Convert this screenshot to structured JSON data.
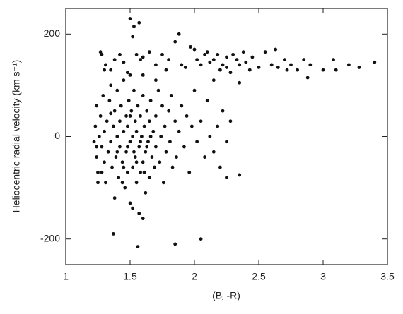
{
  "chart_data": {
    "type": "scatter",
    "xlabel": "(Bⱼ -R)",
    "ylabel": "Heliocentric radial velocity (km s⁻¹)",
    "xlim": [
      1,
      3.5
    ],
    "ylim": [
      -250,
      250
    ],
    "xticks": [
      1,
      1.5,
      2,
      2.5,
      3,
      3.5
    ],
    "yticks": [
      -200,
      0,
      200
    ],
    "color": "#111111",
    "x": [
      1.27,
      1.28,
      1.31,
      1.35,
      1.38,
      1.42,
      1.45,
      1.48,
      1.5,
      1.53,
      1.57,
      1.52,
      1.55,
      1.58,
      1.6,
      1.65,
      1.7,
      1.75,
      1.78,
      1.8,
      1.85,
      1.9,
      1.93,
      1.97,
      2.0,
      2.02,
      2.05,
      2.08,
      2.1,
      2.12,
      2.15,
      2.18,
      2.2,
      2.22,
      2.25,
      2.28,
      2.3,
      2.33,
      2.35,
      2.38,
      2.4,
      2.43,
      2.45,
      2.5,
      2.55,
      2.6,
      2.63,
      2.65,
      2.7,
      2.72,
      2.75,
      2.8,
      2.85,
      2.88,
      2.9,
      3.0,
      3.08,
      3.1,
      3.2,
      3.28,
      3.4,
      1.88,
      2.15,
      2.25,
      2.35,
      1.22,
      1.23,
      1.24,
      1.24,
      1.25,
      1.26,
      1.27,
      1.28,
      1.29,
      1.3,
      1.3,
      1.31,
      1.32,
      1.33,
      1.34,
      1.35,
      1.35,
      1.36,
      1.37,
      1.38,
      1.38,
      1.39,
      1.4,
      1.4,
      1.41,
      1.42,
      1.42,
      1.43,
      1.44,
      1.45,
      1.45,
      1.46,
      1.47,
      1.47,
      1.48,
      1.48,
      1.49,
      1.5,
      1.5,
      1.51,
      1.52,
      1.52,
      1.53,
      1.54,
      1.54,
      1.55,
      1.55,
      1.56,
      1.57,
      1.57,
      1.58,
      1.58,
      1.59,
      1.6,
      1.6,
      1.61,
      1.62,
      1.62,
      1.63,
      1.64,
      1.65,
      1.65,
      1.66,
      1.67,
      1.68,
      1.69,
      1.7,
      1.7,
      1.72,
      1.73,
      1.74,
      1.75,
      1.76,
      1.77,
      1.78,
      1.8,
      1.81,
      1.82,
      1.83,
      1.85,
      1.86,
      1.88,
      1.9,
      1.92,
      1.94,
      1.96,
      1.98,
      2.0,
      2.02,
      2.05,
      2.08,
      2.1,
      2.12,
      2.15,
      2.18,
      2.2,
      2.22,
      2.25,
      2.28,
      1.37,
      1.56,
      1.85,
      2.05,
      2.35,
      2.25,
      1.6,
      1.52,
      1.44,
      1.5,
      1.6,
      1.7,
      1.3,
      1.48,
      1.58,
      1.63,
      1.53,
      1.45,
      1.66,
      1.5,
      1.4,
      1.35,
      1.28,
      1.25,
      1.24,
      1.55,
      1.61
    ],
    "values": [
      165,
      160,
      140,
      130,
      150,
      160,
      145,
      125,
      230,
      215,
      222,
      195,
      160,
      150,
      155,
      165,
      140,
      160,
      130,
      150,
      185,
      140,
      135,
      175,
      170,
      150,
      140,
      160,
      165,
      145,
      150,
      160,
      130,
      140,
      155,
      125,
      160,
      150,
      140,
      165,
      145,
      130,
      155,
      135,
      165,
      140,
      170,
      135,
      150,
      130,
      140,
      130,
      150,
      115,
      140,
      130,
      150,
      130,
      140,
      135,
      145,
      200,
      110,
      135,
      105,
      -10,
      20,
      -40,
      60,
      -70,
      0,
      40,
      -20,
      80,
      -50,
      10,
      -90,
      30,
      -30,
      70,
      -10,
      100,
      -60,
      20,
      -120,
      50,
      -40,
      0,
      90,
      -80,
      30,
      -20,
      60,
      -50,
      10,
      110,
      -100,
      40,
      -30,
      -70,
      20,
      70,
      -10,
      -130,
      50,
      -60,
      0,
      90,
      -40,
      30,
      -90,
      10,
      60,
      -20,
      -150,
      40,
      -70,
      0,
      -50,
      80,
      20,
      -30,
      -110,
      50,
      -10,
      30,
      -80,
      70,
      -40,
      10,
      -60,
      40,
      -20,
      90,
      -50,
      0,
      60,
      -90,
      20,
      -30,
      50,
      -10,
      80,
      -60,
      30,
      -40,
      10,
      60,
      -20,
      40,
      -70,
      20,
      90,
      -10,
      30,
      -40,
      70,
      0,
      -30,
      20,
      -60,
      50,
      -10,
      30,
      -190,
      -215,
      -210,
      -200,
      -75,
      -80,
      -160,
      -140,
      -90,
      120,
      120,
      110,
      130,
      -20,
      -10,
      -20,
      -30,
      -60,
      0,
      40,
      -30,
      45,
      -70,
      -90,
      -20,
      -50,
      -70
    ]
  }
}
